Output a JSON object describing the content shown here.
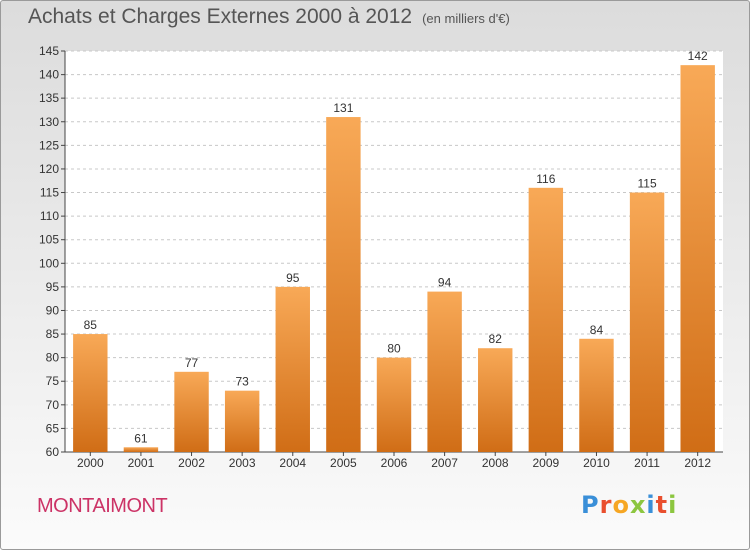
{
  "header": {
    "title": "Achats et Charges Externes 2000 à 2012",
    "subtitle": "(en milliers d'€)"
  },
  "footer": {
    "commune": "MONTAIMONT",
    "logo": {
      "text": "Proxiti",
      "colors": [
        "#3a8fd8",
        "#e94f2e",
        "#f6a623",
        "#8cc63f",
        "#3a8fd8",
        "#e94f2e",
        "#8cc63f"
      ]
    }
  },
  "colors": {
    "bar_top": "#f8a957",
    "bar_bottom": "#d06d16",
    "grid": "#c8c8c8",
    "axis": "#444444",
    "text": "#333333"
  },
  "chart_data": {
    "type": "bar",
    "title": "Achats et Charges Externes 2000 à 2012",
    "subtitle": "(en milliers d'€)",
    "categories": [
      "2000",
      "2001",
      "2002",
      "2003",
      "2004",
      "2005",
      "2006",
      "2007",
      "2008",
      "2009",
      "2010",
      "2011",
      "2012"
    ],
    "values": [
      85,
      61,
      77,
      73,
      95,
      131,
      80,
      94,
      82,
      116,
      84,
      115,
      142
    ],
    "ylim": [
      60,
      145
    ],
    "yticks": [
      60,
      65,
      70,
      75,
      80,
      85,
      90,
      95,
      100,
      105,
      110,
      115,
      120,
      125,
      130,
      135,
      140,
      145
    ],
    "xlabel": "",
    "ylabel": "",
    "grid": true,
    "legend": "none"
  }
}
